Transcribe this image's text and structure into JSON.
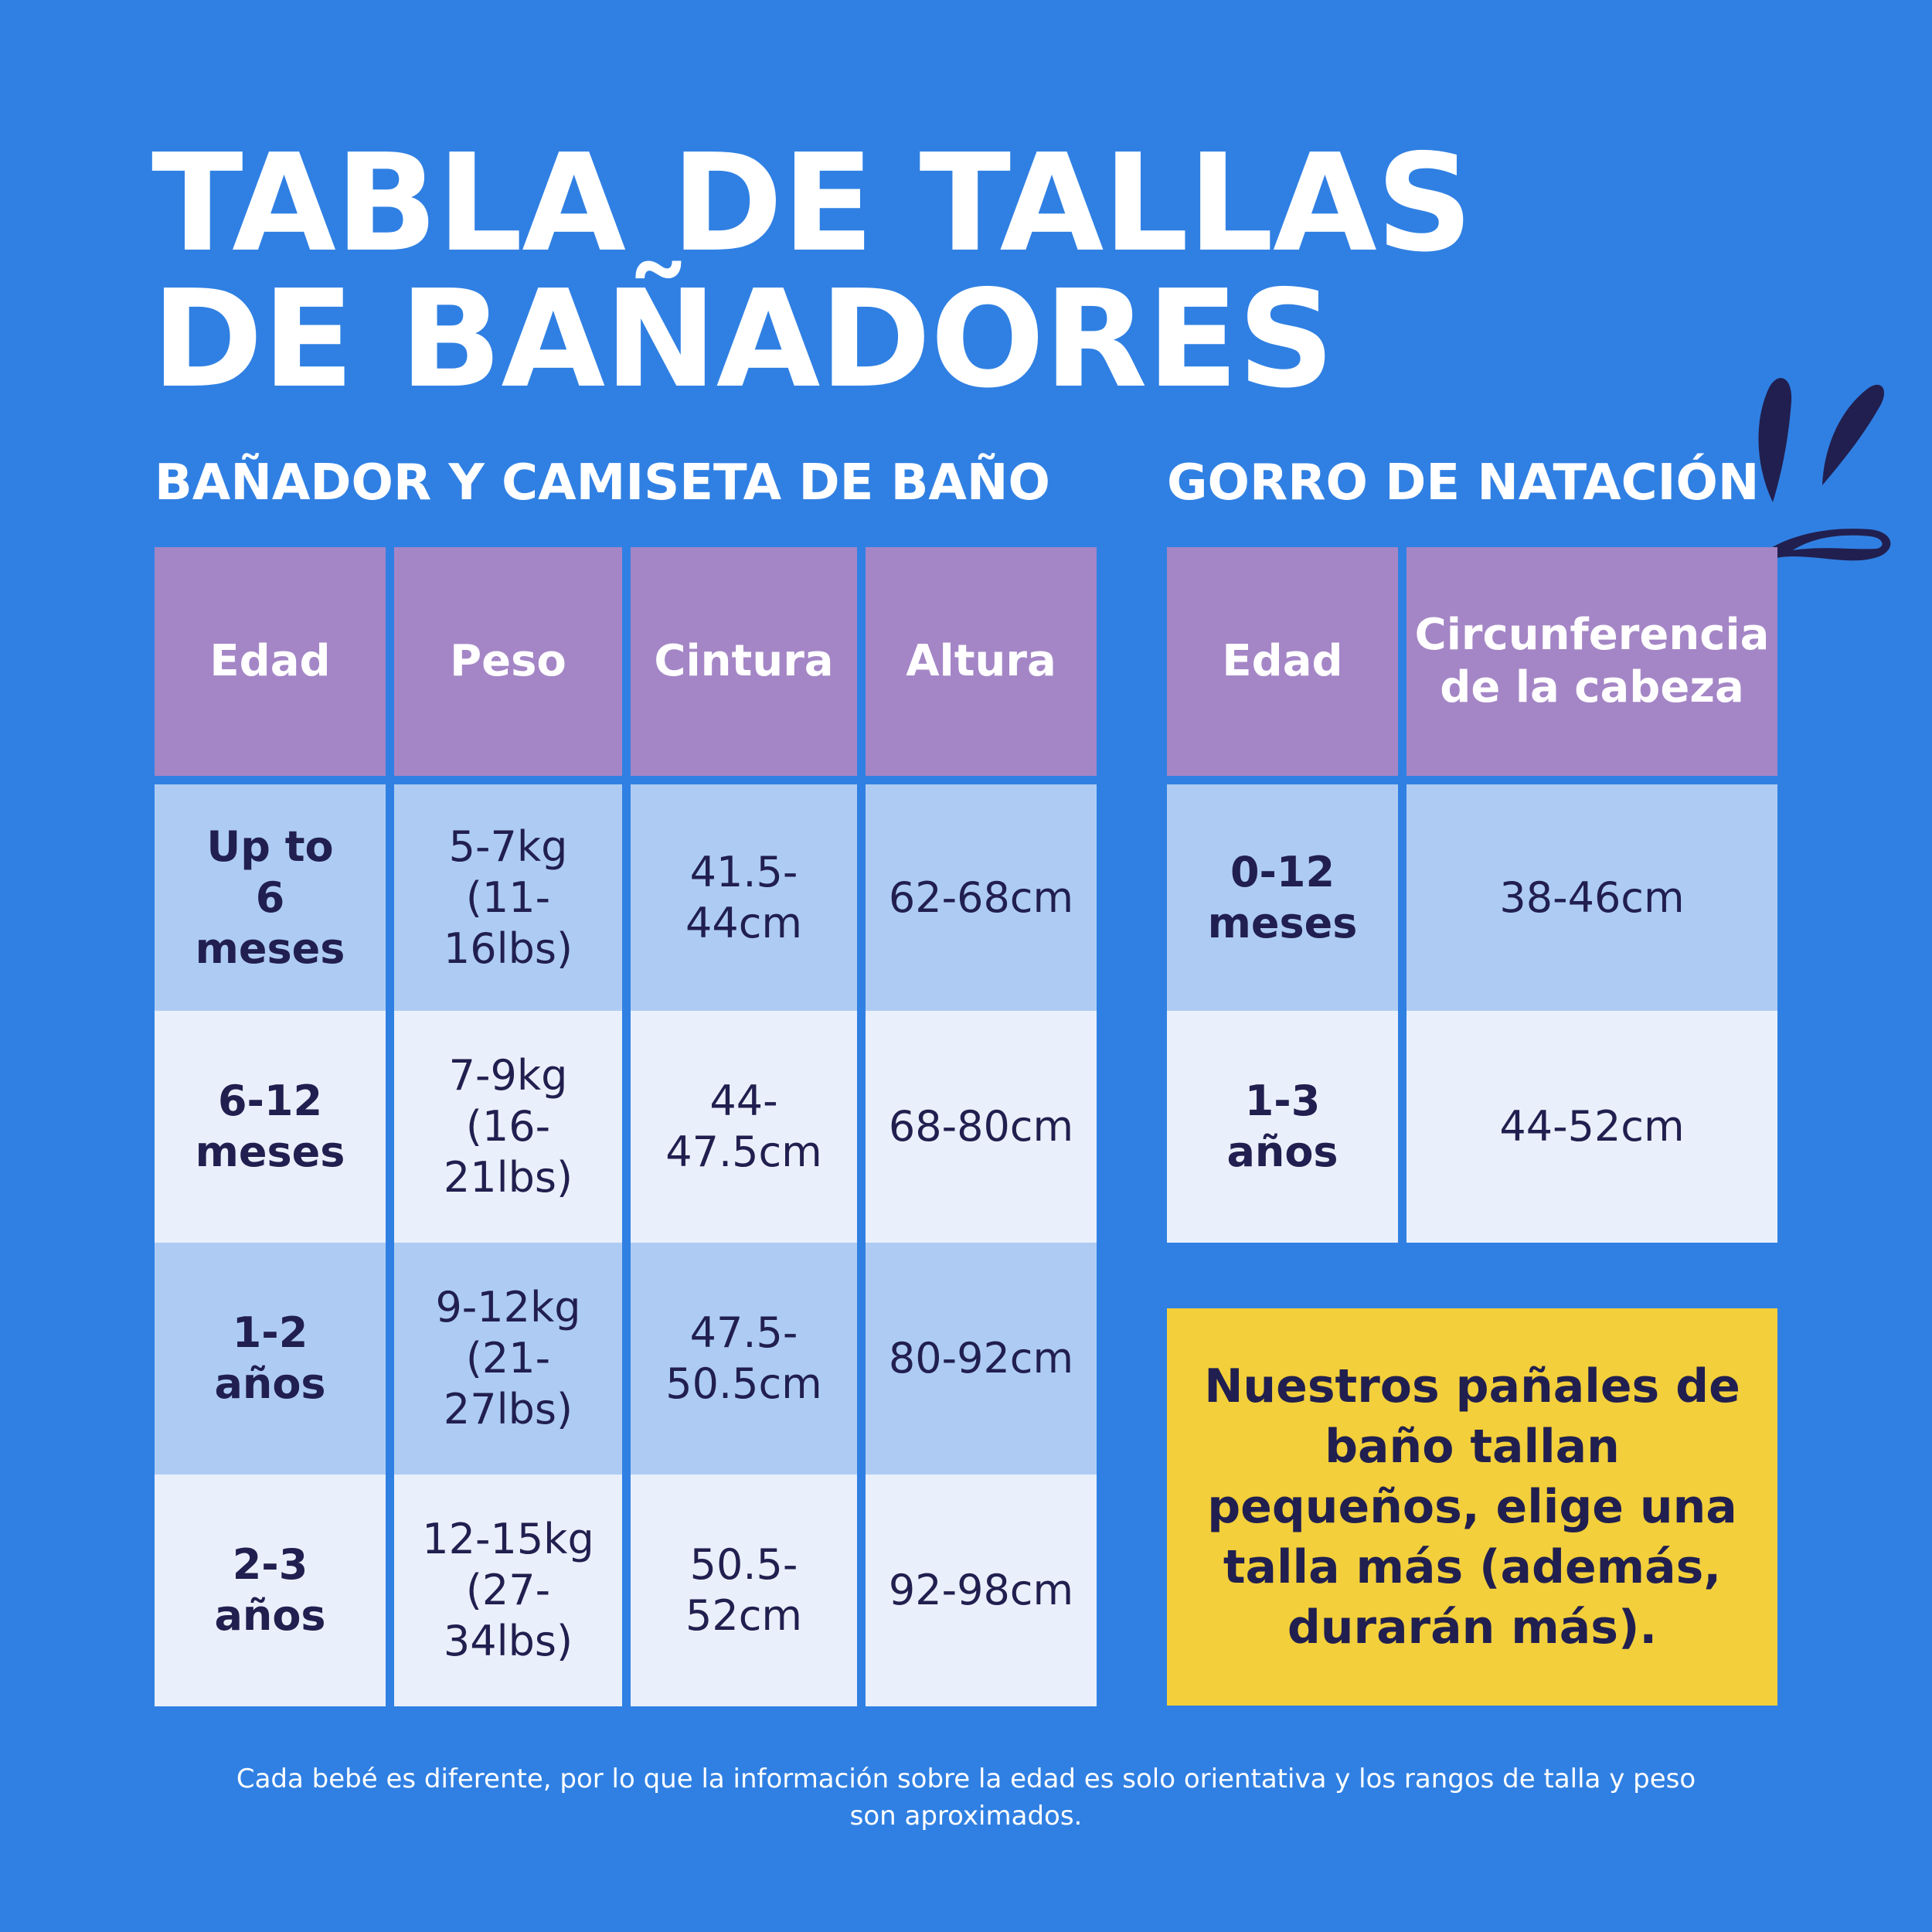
{
  "title": {
    "line1": "TABLA DE TALLAS",
    "line2": "DE BAÑADORES"
  },
  "swimsuit_table": {
    "heading": "BAÑADOR Y CAMISETA DE BAÑO",
    "headers": [
      "Edad",
      "Peso",
      "Cintura",
      "Altura"
    ],
    "rows": [
      {
        "edad": "Up to 6 meses",
        "peso": "5-7kg (11-16lbs)",
        "cintura": "41.5-44cm",
        "altura": "62-68cm"
      },
      {
        "edad": "6-12 meses",
        "peso": "7-9kg (16-21lbs)",
        "cintura": "44-47.5cm",
        "altura": "68-80cm"
      },
      {
        "edad": "1-2 años",
        "peso": "9-12kg (21-27lbs)",
        "cintura": "47.5-50.5cm",
        "altura": "80-92cm"
      },
      {
        "edad": "2-3 años",
        "peso": "12-15kg (27-34lbs)",
        "cintura": "50.5-52cm",
        "altura": "92-98cm"
      }
    ]
  },
  "cap_table": {
    "heading": "GORRO DE NATACIÓN",
    "headers": [
      "Edad",
      "Circunferencia de la cabeza"
    ],
    "rows": [
      {
        "edad": "0-12 meses",
        "circunferencia": "38-46cm"
      },
      {
        "edad": "1-3 años",
        "circunferencia": "44-52cm"
      }
    ]
  },
  "note": "Nuestros pañales de baño tallan pequeños, elige una talla más (además, durarán más).",
  "footer": "Cada bebé es diferente, por lo que la información sobre la edad es solo orientativa y los rangos de talla y peso son aproximados.",
  "colors": {
    "background": "#3080E3",
    "header": "#A486C6",
    "row_dark": "#AECCF3",
    "row_light": "#E9F0FB",
    "note": "#F2CF3B",
    "text_dark": "#211F4F"
  },
  "icons": [
    "splash-icon"
  ]
}
